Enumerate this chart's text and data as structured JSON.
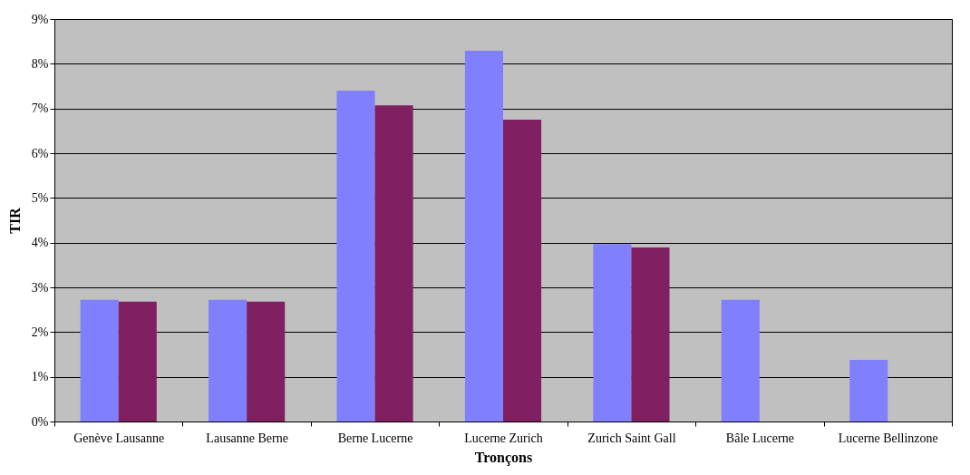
{
  "chart_data": {
    "type": "bar",
    "xlabel": "Tronçons",
    "ylabel": "TIR",
    "categories": [
      "Genève Lausanne",
      "Lausanne Berne",
      "Berne Lucerne",
      "Lucerne Zurich",
      "Zurich Saint Gall",
      "Bâle Lucerne",
      "Lucerne Bellinzone"
    ],
    "series": [
      {
        "color": "#8080ff",
        "values": [
          2.72,
          2.72,
          7.4,
          8.29,
          3.97,
          2.72,
          1.38
        ]
      },
      {
        "color": "#802060",
        "values": [
          2.68,
          2.68,
          7.07,
          6.75,
          3.89,
          null,
          null
        ]
      }
    ],
    "ylim": [
      0,
      9
    ],
    "yticks": [
      {
        "value": 0,
        "label": "0%"
      },
      {
        "value": 1,
        "label": "1%"
      },
      {
        "value": 2,
        "label": "2%"
      },
      {
        "value": 3,
        "label": "3%"
      },
      {
        "value": 4,
        "label": "4%"
      },
      {
        "value": 5,
        "label": "5%"
      },
      {
        "value": 6,
        "label": "6%"
      },
      {
        "value": 7,
        "label": "7%"
      },
      {
        "value": 8,
        "label": "8%"
      },
      {
        "value": 9,
        "label": "9%"
      }
    ],
    "grid": "y",
    "legend": false
  }
}
